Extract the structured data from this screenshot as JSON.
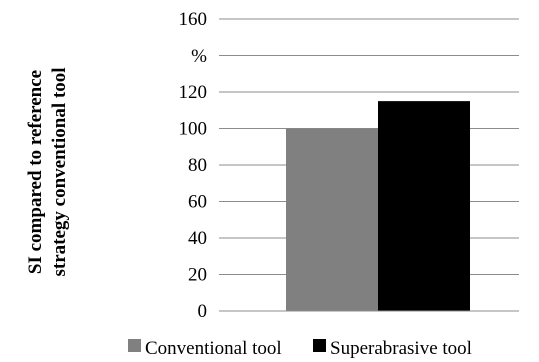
{
  "chart_data": {
    "type": "bar",
    "ylabel_lines": [
      "SI compared to reference",
      "strategy conventional tool"
    ],
    "y_unit": "%",
    "ylim": [
      0,
      160
    ],
    "yticks": [
      0,
      20,
      40,
      60,
      80,
      100,
      120,
      160
    ],
    "grid": true,
    "legend_position": "bottom",
    "series": [
      {
        "name": "Conventional tool",
        "value": 100,
        "color": "#808080"
      },
      {
        "name": "Superabrasive tool",
        "value": 115,
        "color": "#000000"
      }
    ]
  }
}
